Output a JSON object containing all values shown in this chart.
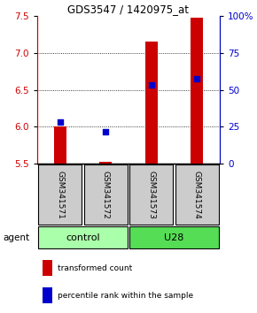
{
  "title": "GDS3547 / 1420975_at",
  "samples": [
    "GSM341571",
    "GSM341572",
    "GSM341573",
    "GSM341574"
  ],
  "bar_bottom": 5.5,
  "bar_tops": [
    6.0,
    5.52,
    7.15,
    7.48
  ],
  "blue_dots": [
    6.06,
    5.93,
    6.57,
    6.65
  ],
  "ylim": [
    5.5,
    7.5
  ],
  "yticks_left": [
    5.5,
    6.0,
    6.5,
    7.0,
    7.5
  ],
  "yticks_right_pct": [
    0,
    25,
    50,
    75,
    100
  ],
  "yticks_right_vals": [
    5.5,
    6.0,
    6.5,
    7.0,
    7.5
  ],
  "bar_color": "#cc0000",
  "dot_color": "#0000cc",
  "control_color": "#aaffaa",
  "u28_color": "#55dd55",
  "sample_box_color": "#cccccc",
  "left_label_color": "#cc0000",
  "right_label_color": "#0000cc",
  "grid_dotted_at": [
    6.0,
    6.5,
    7.0
  ],
  "bar_width": 0.28
}
